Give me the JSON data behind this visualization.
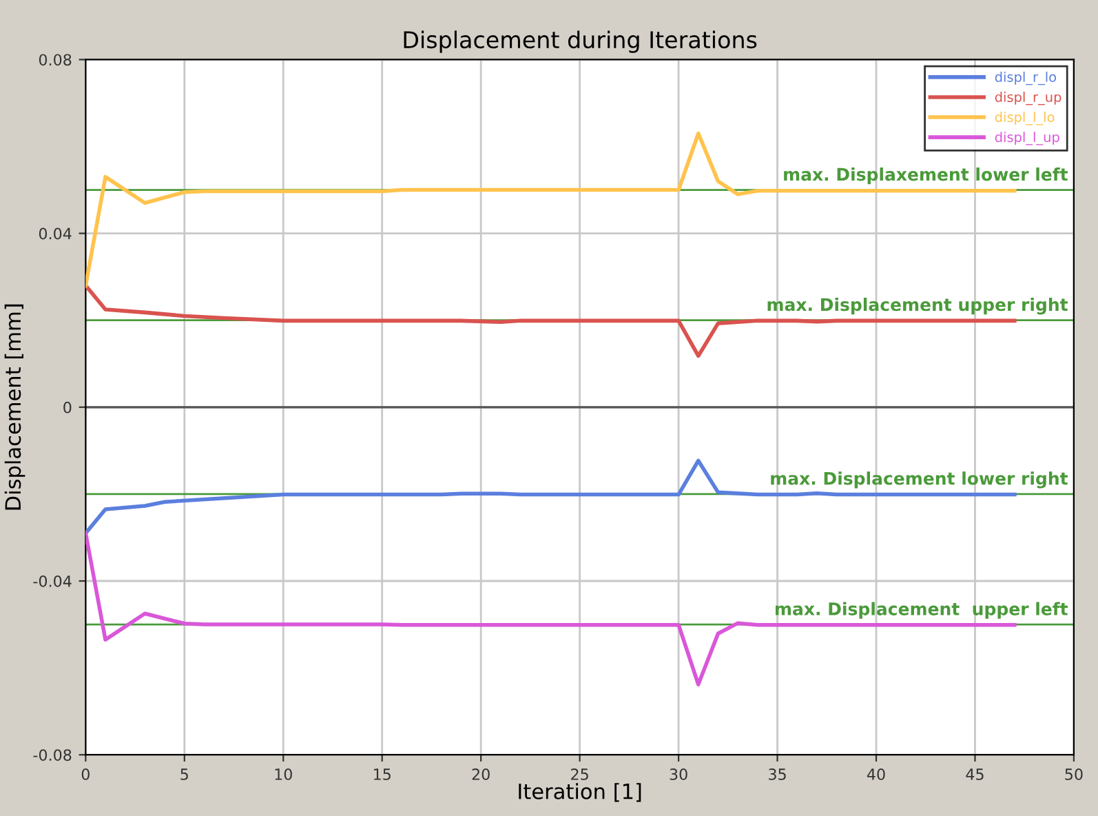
{
  "chart_data": {
    "type": "line",
    "title": "Displacement during Iterations",
    "xlabel": "Iteration [1]",
    "ylabel": "Displacement [mm]",
    "xlim": [
      0,
      50
    ],
    "xticks": [
      0,
      5,
      10,
      15,
      20,
      25,
      30,
      35,
      40,
      45,
      50
    ],
    "ylim": [
      -0.08,
      0.08
    ],
    "yticks": [
      -0.08,
      -0.04,
      0,
      0.04,
      0.08
    ],
    "grid": true,
    "legend": "top right",
    "marker": "none",
    "line_style": "solid",
    "series": [
      {
        "name": "displ_r_lo",
        "color": "#5b7fde",
        "x": [
          0,
          1,
          3,
          4,
          10,
          18,
          19,
          21,
          22,
          30,
          31,
          32,
          34,
          36,
          37,
          38,
          47
        ],
        "values": [
          -0.029,
          -0.0235,
          -0.0227,
          -0.0218,
          -0.0201,
          -0.0201,
          -0.0199,
          -0.0199,
          -0.0201,
          -0.0201,
          -0.0123,
          -0.0196,
          -0.0201,
          -0.0201,
          -0.0198,
          -0.0201,
          -0.0201
        ]
      },
      {
        "name": "displ_r_up",
        "color": "#d9534f",
        "x": [
          0,
          1,
          3,
          5,
          7,
          10,
          19,
          21,
          22,
          30,
          31,
          32,
          34,
          36,
          37,
          38,
          47
        ],
        "values": [
          0.028,
          0.0225,
          0.0218,
          0.021,
          0.0205,
          0.0199,
          0.0199,
          0.0196,
          0.0199,
          0.0199,
          0.0118,
          0.0193,
          0.0199,
          0.0199,
          0.0197,
          0.0199,
          0.0199
        ]
      },
      {
        "name": "displ_l_lo",
        "color": "#ffc34d",
        "x": [
          0,
          1,
          3,
          5,
          6,
          15,
          16,
          30,
          31,
          32,
          33,
          34,
          47
        ],
        "values": [
          0.028,
          0.053,
          0.047,
          0.0495,
          0.0497,
          0.0497,
          0.05,
          0.05,
          0.063,
          0.052,
          0.049,
          0.0498,
          0.0498
        ]
      },
      {
        "name": "displ_l_up",
        "color": "#d957d9",
        "x": [
          0,
          1,
          3,
          5,
          6,
          15,
          16,
          30,
          31,
          32,
          33,
          34,
          47
        ],
        "values": [
          -0.029,
          -0.0535,
          -0.0475,
          -0.0498,
          -0.05,
          -0.05,
          -0.0501,
          -0.0501,
          -0.0638,
          -0.0521,
          -0.0497,
          -0.0501,
          -0.0501
        ]
      }
    ],
    "ref_lines": [
      {
        "axis": "y",
        "value": 0.05,
        "label": "max. Displaxement lower left",
        "color": "#4a9a3a"
      },
      {
        "axis": "y",
        "value": 0.02,
        "label": "max. Displacement upper right",
        "color": "#4a9a3a"
      },
      {
        "axis": "y",
        "value": -0.02,
        "label": "max. Displacement lower right",
        "color": "#4a9a3a"
      },
      {
        "axis": "y",
        "value": -0.05,
        "label": "max. Displacement  upper left",
        "color": "#4a9a3a"
      }
    ]
  }
}
